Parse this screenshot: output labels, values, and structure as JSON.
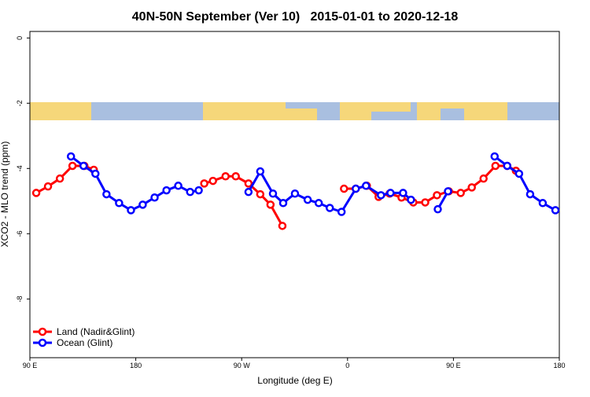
{
  "chart_data": {
    "type": "line",
    "title": "40N-50N September (Ver 10)   2015-01-01 to 2020-12-18",
    "x_label": "Longitude (deg E)",
    "y_label": "XCO2 - MLO trend (ppm)",
    "xlim": [
      90,
      540
    ],
    "ylim": [
      -9.8,
      0.2
    ],
    "xticks": [
      {
        "value": 90,
        "label": "90 E"
      },
      180,
      {
        "value": 270,
        "label": "90 W"
      },
      {
        "value": 360,
        "label": "0"
      },
      {
        "value": 450,
        "label": "90 E"
      },
      {
        "value": 540,
        "label": "180"
      }
    ],
    "yticks": [
      0,
      -2,
      -4,
      -6,
      -8
    ],
    "legend": "bottom-left",
    "series": [
      {
        "name": "Land (Nadir&Glint)",
        "color": "#ff0000",
        "x": [
          95.4,
          105.4,
          115.5,
          126.2,
          136.3,
          144.3,
          null,
          238.2,
          245.6,
          256.3,
          265.0,
          275.8,
          285.8,
          294.5,
          304.6,
          null,
          357.0,
          367.0,
          376.4,
          386.4,
          395.8,
          405.9,
          415.9,
          426.0,
          436.0,
          446.1,
          456.2,
          465.6,
          475.6,
          485.7,
          495.7,
          503.1
        ],
        "values": [
          -4.75,
          -4.55,
          -4.31,
          -3.92,
          -3.92,
          -4.04,
          null,
          -4.46,
          -4.38,
          -4.24,
          -4.24,
          -4.46,
          -4.79,
          -5.11,
          -5.76,
          null,
          -4.62,
          -4.62,
          -4.53,
          -4.87,
          -4.77,
          -4.89,
          -5.04,
          -5.04,
          -4.82,
          -4.7,
          -4.75,
          -4.58,
          -4.31,
          -3.92,
          -3.92,
          -4.07
        ]
      },
      {
        "name": "Ocean (Glint)",
        "color": "#0000ff",
        "x": [
          124.9,
          135.6,
          145.7,
          155.1,
          165.8,
          175.9,
          185.9,
          196.0,
          206.1,
          216.1,
          226.2,
          233.5,
          null,
          275.8,
          285.8,
          296.6,
          305.3,
          315.3,
          326.1,
          335.5,
          344.9,
          354.9,
          367.0,
          375.7,
          388.4,
          396.5,
          407.2,
          413.9,
          null,
          436.7,
          445.4,
          null,
          485.0,
          495.7,
          505.8,
          515.2,
          525.9,
          536.7
        ],
        "values": [
          -3.63,
          -3.92,
          -4.16,
          -4.79,
          -5.06,
          -5.28,
          -5.11,
          -4.89,
          -4.67,
          -4.53,
          -4.72,
          -4.67,
          null,
          -4.72,
          -4.09,
          -4.77,
          -5.06,
          -4.77,
          -4.96,
          -5.06,
          -5.21,
          -5.33,
          -4.62,
          -4.53,
          -4.82,
          -4.75,
          -4.75,
          -4.96,
          null,
          -5.25,
          -4.7,
          null,
          -3.63,
          -3.92,
          -4.16,
          -4.79,
          -5.06,
          -5.28
        ]
      }
    ]
  }
}
